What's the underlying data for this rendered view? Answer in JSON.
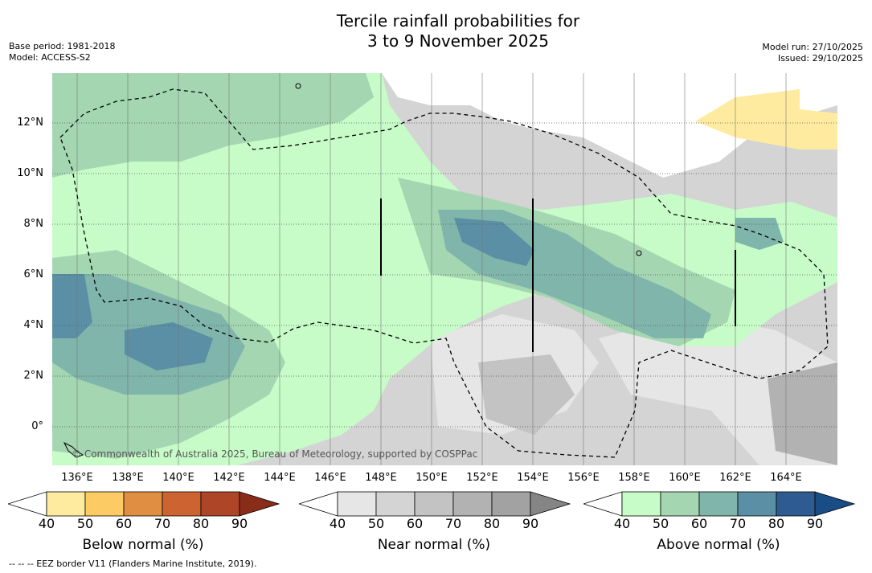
{
  "title": {
    "line1": "Tercile rainfall probabilities for",
    "line2": "3 to 9 November 2025"
  },
  "meta": {
    "base_period": "Base period: 1981-2018",
    "model": "Model: ACCESS-S2",
    "model_run": "Model run: 27/10/2025",
    "issued": "Issued: 29/10/2025"
  },
  "map": {
    "lat_labels": [
      "12°N",
      "10°N",
      "8°N",
      "6°N",
      "4°N",
      "2°N",
      "0°"
    ],
    "lon_labels": [
      "136°E",
      "138°E",
      "140°E",
      "142°E",
      "144°E",
      "146°E",
      "148°E",
      "150°E",
      "152°E",
      "154°E",
      "156°E",
      "158°E",
      "160°E",
      "162°E",
      "164°E"
    ],
    "copyright": "© Commonwealth of Australia 2025, Bureau of Meteorology, supported by COSPPac"
  },
  "legends": {
    "below": {
      "label": "Below normal (%)",
      "colors": [
        "#ffffff",
        "#feeba0",
        "#fdcb63",
        "#e08f42",
        "#cc6331",
        "#ad4526",
        "#8a2c1a"
      ]
    },
    "near": {
      "label": "Near normal (%)",
      "colors": [
        "#ffffff",
        "#e6e6e6",
        "#d4d4d4",
        "#c3c3c3",
        "#b2b2b2",
        "#a2a2a2",
        "#858585"
      ]
    },
    "above": {
      "label": "Above normal (%)",
      "colors": [
        "#ffffff",
        "#c7fcc8",
        "#a4d6b2",
        "#80b5ab",
        "#5a8fa5",
        "#2f5c90",
        "#1a4d85"
      ]
    },
    "ticks": [
      "40",
      "50",
      "60",
      "70",
      "80",
      "90"
    ]
  },
  "footnote": "--  --  -- EEZ border V11 (Flanders Marine Institute, 2019)."
}
